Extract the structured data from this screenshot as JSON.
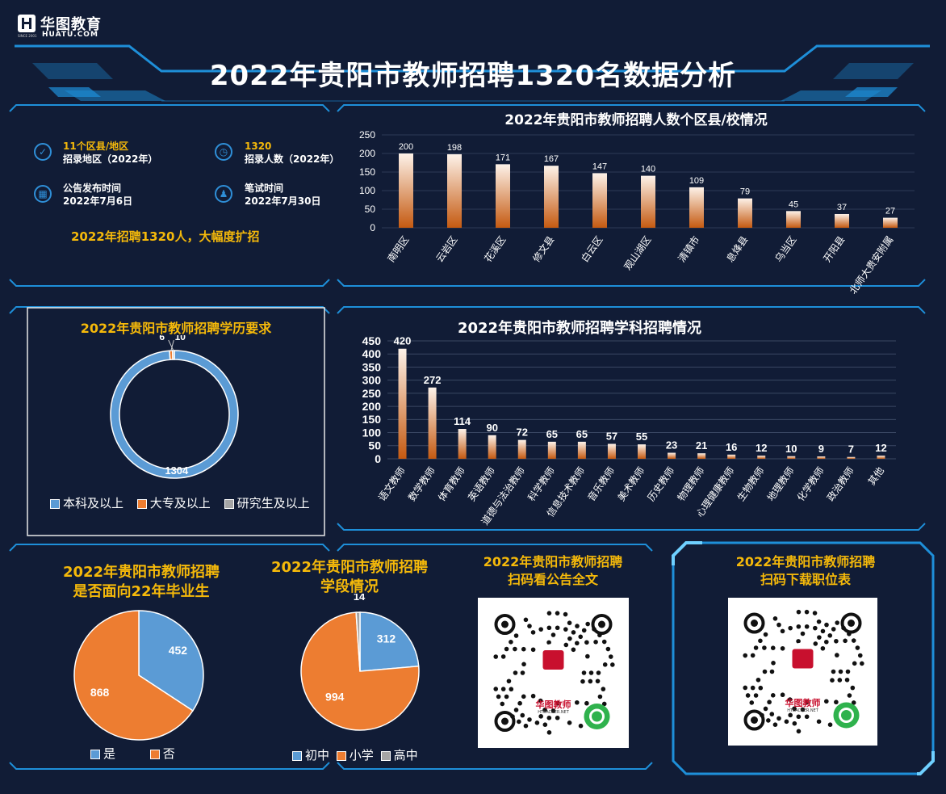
{
  "brand": {
    "name": "华图教育",
    "domain": "HUATU.COM",
    "since": "SINCE 2001"
  },
  "main_title": "2022年贵阳市教师招聘1320名数据分析",
  "summary": {
    "items": [
      {
        "icon": "check-circle-icon",
        "value": "11个区县/地区",
        "label": "招录地区（2022年）"
      },
      {
        "icon": "clock-icon",
        "value": "1320",
        "label": "招录人数（2022年）"
      },
      {
        "icon": "calendar-icon",
        "value": "公告发布时间",
        "label": "2022年7月6日"
      },
      {
        "icon": "people-icon",
        "value": "笔试时间",
        "label": "2022年7月30日"
      }
    ],
    "slogan": "2022年招聘1320人，大幅度扩招"
  },
  "colors": {
    "accent": "#f5b90a",
    "blue": "#5b9bd5",
    "orange": "#ed7d31",
    "gray": "#a5a5a5",
    "frame": "#1e8fd9"
  },
  "chart_data": [
    {
      "type": "bar",
      "title": "2022年贵阳市教师招聘人数个区县/校情况",
      "categories": [
        "南明区",
        "云岩区",
        "花溪区",
        "修文县",
        "白云区",
        "观山湖区",
        "清镇市",
        "息烽县",
        "乌当区",
        "开阳县",
        "北师大贵安附属"
      ],
      "values": [
        200,
        198,
        171,
        167,
        147,
        140,
        109,
        79,
        45,
        37,
        27
      ],
      "yticks": [
        "0",
        "50",
        "100",
        "150",
        "200",
        "250"
      ],
      "ylim": [
        0,
        250
      ]
    },
    {
      "type": "bar",
      "title": "2022年贵阳市教师招聘学科招聘情况",
      "categories": [
        "语文教师",
        "数学教师",
        "体育教师",
        "英语教师",
        "道德与法治教师",
        "科学教师",
        "信息技术教师",
        "音乐教师",
        "美术教师",
        "历史教师",
        "物理教师",
        "心理健康教师",
        "生物教师",
        "地理教师",
        "化学教师",
        "政治教师",
        "其他"
      ],
      "values": [
        420,
        272,
        114,
        90,
        72,
        65,
        65,
        57,
        55,
        23,
        21,
        16,
        12,
        10,
        9,
        7,
        12
      ],
      "yticks": [
        "0",
        "50",
        "100",
        "150",
        "200",
        "250",
        "300",
        "350",
        "400",
        "450"
      ],
      "ylim": [
        0,
        450
      ]
    },
    {
      "type": "pie",
      "variant": "donut",
      "title": "2022年贵阳市教师招聘学历要求",
      "labels": [
        "本科及以上",
        "大专及以上",
        "研究生及以上"
      ],
      "values": [
        1304,
        10,
        6
      ],
      "colors": [
        "#5b9bd5",
        "#ed7d31",
        "#a5a5a5"
      ]
    },
    {
      "type": "pie",
      "title_line1": "2022年贵阳市教师招聘",
      "title_line2": "是否面向22年毕业生",
      "labels": [
        "是",
        "否"
      ],
      "values": [
        452,
        868
      ],
      "colors": [
        "#5b9bd5",
        "#ed7d31"
      ]
    },
    {
      "type": "pie",
      "title_line1": "2022年贵阳市教师招聘",
      "title_line2": "学段情况",
      "labels": [
        "初中",
        "小学",
        "高中"
      ],
      "values": [
        312,
        994,
        14
      ],
      "colors": [
        "#5b9bd5",
        "#ed7d31",
        "#a5a5a5"
      ]
    }
  ],
  "qr_codes": [
    {
      "line1": "2022年贵阳市教师招聘",
      "line2": "扫码看公告全文",
      "brand": "华图教师",
      "domain": "HTEACHER.NET"
    },
    {
      "line1": "2022年贵阳市教师招聘",
      "line2": "扫码下载职位表",
      "brand": "华图教师",
      "domain": "HTEACHER.NET"
    }
  ]
}
